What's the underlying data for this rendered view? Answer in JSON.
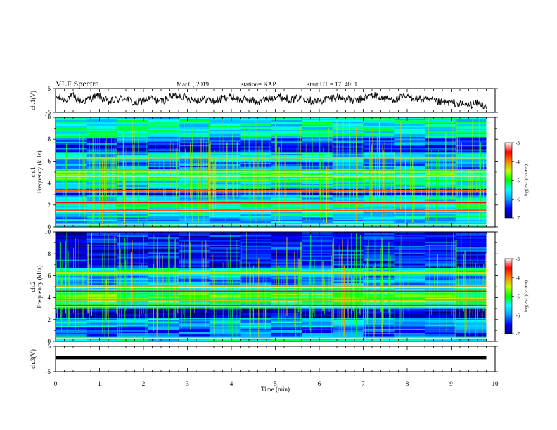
{
  "header": {
    "title": "VLF Spectra",
    "date": "Mar.6 , 2019",
    "station": "station= KAP",
    "start": "start  UT =   17: 40: 1"
  },
  "chart_data": [
    {
      "type": "line",
      "panel": "ch1-waveform",
      "ylabel": "ch.1(V)",
      "ylim": [
        -5,
        5
      ],
      "yticks": [
        "5",
        "-5"
      ],
      "xlim": [
        0,
        9.8
      ],
      "series": [
        {
          "color": "#000000",
          "x": [
            0,
            0.2,
            0.4,
            0.6,
            0.8,
            1.0,
            1.2,
            1.4,
            1.6,
            1.8,
            2.0,
            2.2,
            2.4,
            2.6,
            2.8,
            3.0,
            3.2,
            3.4,
            3.6,
            3.8,
            4.0,
            4.2,
            4.4,
            4.6,
            4.8,
            5.0,
            5.2,
            5.4,
            5.6,
            5.8,
            6.0,
            6.2,
            6.4,
            6.6,
            6.8,
            7.0,
            7.2,
            7.4,
            7.6,
            7.8,
            8.0,
            8.2,
            8.4,
            8.6,
            8.8,
            9.0,
            9.2,
            9.4,
            9.6,
            9.8
          ],
          "values": [
            1.5,
            0.5,
            1.8,
            -0.5,
            1.0,
            2.0,
            -0.8,
            0.4,
            1.2,
            -1.5,
            0.3,
            0.8,
            -0.6,
            1.4,
            2.2,
            1.0,
            0.2,
            0.6,
            -0.4,
            0.9,
            1.6,
            0.1,
            0.5,
            -0.7,
            0.6,
            1.8,
            1.1,
            0.4,
            1.5,
            0.0,
            -0.5,
            0.8,
            1.6,
            0.7,
            -0.3,
            0.9,
            2.3,
            1.2,
            0.4,
            0.8,
            1.5,
            1.0,
            0.1,
            -0.4,
            -1.0,
            -0.8,
            -1.6,
            -2.0,
            -1.3,
            -2.2
          ]
        }
      ]
    },
    {
      "type": "heatmap",
      "panel": "ch1-spectrogram",
      "ylabel_lines": [
        "ch.1",
        "Frequency  (kHz)"
      ],
      "ylim": [
        0,
        10
      ],
      "yticks": [
        "0",
        "2",
        "4",
        "6",
        "8",
        "10"
      ],
      "xlim": [
        0,
        9.8
      ],
      "value_range": [
        -7,
        -3
      ],
      "bands": [
        {
          "fmin": 0.0,
          "fmax": 0.4,
          "level": -5.5
        },
        {
          "fmin": 0.4,
          "fmax": 0.9,
          "level": -5.9
        },
        {
          "fmin": 0.9,
          "fmax": 1.9,
          "level": -5.6
        },
        {
          "fmin": 1.9,
          "fmax": 2.4,
          "level": -5.2
        },
        {
          "fmin": 2.4,
          "fmax": 2.9,
          "level": -5.7
        },
        {
          "fmin": 2.9,
          "fmax": 3.5,
          "level": -6.6
        },
        {
          "fmin": 3.5,
          "fmax": 4.2,
          "level": -5.6
        },
        {
          "fmin": 4.2,
          "fmax": 5.3,
          "level": -5.1
        },
        {
          "fmin": 5.3,
          "fmax": 6.0,
          "level": -6.1
        },
        {
          "fmin": 6.0,
          "fmax": 6.8,
          "level": -5.7
        },
        {
          "fmin": 6.8,
          "fmax": 7.5,
          "level": -6.5
        },
        {
          "fmin": 7.5,
          "fmax": 8.2,
          "level": -6.2
        },
        {
          "fmin": 8.2,
          "fmax": 10.0,
          "level": -5.5
        }
      ],
      "lines": [
        {
          "f": 0.3,
          "level": -3.3
        },
        {
          "f": 1.5,
          "level": -3.8
        },
        {
          "f": 2.2,
          "level": -3.5
        },
        {
          "f": 3.3,
          "level": -3.9
        },
        {
          "f": 4.7,
          "level": -3.2
        },
        {
          "f": 5.1,
          "level": -3.4
        },
        {
          "f": 6.3,
          "level": -4.3
        }
      ]
    },
    {
      "type": "heatmap",
      "panel": "ch2-spectrogram",
      "ylabel_lines": [
        "ch.2",
        "Frequency  (kHz)"
      ],
      "ylim": [
        0,
        10
      ],
      "yticks": [
        "0",
        "2",
        "4",
        "6",
        "8",
        "10"
      ],
      "xlim": [
        0,
        9.8
      ],
      "value_range": [
        -7,
        -3
      ],
      "bands": [
        {
          "fmin": 0.0,
          "fmax": 0.5,
          "level": -5.5
        },
        {
          "fmin": 0.5,
          "fmax": 1.3,
          "level": -6.2
        },
        {
          "fmin": 1.3,
          "fmax": 2.2,
          "level": -5.8
        },
        {
          "fmin": 2.2,
          "fmax": 3.0,
          "level": -6.7
        },
        {
          "fmin": 3.0,
          "fmax": 3.6,
          "level": -5.4
        },
        {
          "fmin": 3.6,
          "fmax": 4.5,
          "level": -4.9
        },
        {
          "fmin": 4.5,
          "fmax": 5.2,
          "level": -5.5
        },
        {
          "fmin": 5.2,
          "fmax": 6.0,
          "level": -6.0
        },
        {
          "fmin": 6.0,
          "fmax": 6.7,
          "level": -5.5
        },
        {
          "fmin": 6.7,
          "fmax": 10.0,
          "level": -6.5
        }
      ],
      "lines": [
        {
          "f": 0.4,
          "level": -3.3
        },
        {
          "f": 3.3,
          "level": -3.6
        },
        {
          "f": 3.8,
          "level": -4.0
        },
        {
          "f": 4.6,
          "level": -3.5
        },
        {
          "f": 5.0,
          "level": -4.1
        },
        {
          "f": 6.3,
          "level": -4.4
        }
      ]
    },
    {
      "type": "line",
      "panel": "ch3-waveform",
      "ylabel": "ch.3(V)",
      "ylim": [
        -5,
        5
      ],
      "yticks": [
        "5",
        "-5"
      ],
      "xlim": [
        0,
        9.8
      ],
      "series": [
        {
          "color": "#000000",
          "x": [
            0,
            9.8
          ],
          "values": [
            0.6,
            0.6
          ]
        }
      ]
    }
  ],
  "xaxis": {
    "label": "Time  (min)",
    "range": [
      0,
      10
    ],
    "ticks": [
      "0",
      "1",
      "2",
      "3",
      "4",
      "5",
      "6",
      "7",
      "8",
      "9",
      "10"
    ]
  },
  "colorbar": {
    "label": "log(PSD)(V²/Hz)",
    "range": [
      -7,
      -3
    ],
    "ticks": [
      "-3",
      "-4",
      "-5",
      "-6",
      "-7"
    ],
    "stops": [
      "#000080",
      "#0000ff",
      "#00a0ff",
      "#00ffff",
      "#00ff00",
      "#c0ff00",
      "#ff8000",
      "#ff0000",
      "#ffffff"
    ]
  }
}
